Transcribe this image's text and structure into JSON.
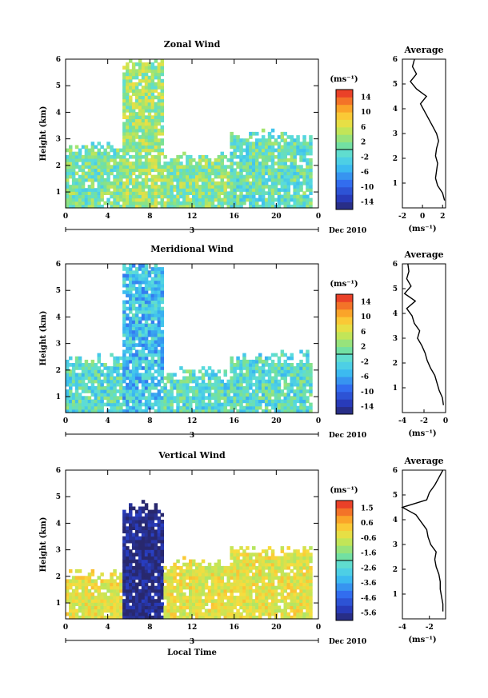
{
  "chart_data": [
    {
      "type": "heatmap",
      "title": "Zonal Wind",
      "ylabel": "Height (km)",
      "xticks": [
        "0",
        "4",
        "8",
        "12",
        "16",
        "20",
        "0"
      ],
      "xlim": [
        0,
        24
      ],
      "yticks": [
        "1",
        "2",
        "3",
        "4",
        "5",
        "6"
      ],
      "ylim": [
        0.4,
        6.0
      ],
      "day_label": "3",
      "month_label": "Dec 2010",
      "colorbar": {
        "unit": "(ms⁻¹)",
        "ticks": [
          "14",
          "10",
          "6",
          "2",
          "-2",
          "-6",
          "-10",
          "-14"
        ],
        "range": [
          -16,
          16
        ]
      },
      "regimes": [
        {
          "t0": 0,
          "t1": 5.3,
          "h_top": 2.7,
          "value": 1
        },
        {
          "t0": 5.3,
          "t1": 9.2,
          "h_top": 6.0,
          "value": 3
        },
        {
          "t0": 9.2,
          "t1": 15.5,
          "h_top": 2.3,
          "value": 2
        },
        {
          "t0": 15.5,
          "t1": 23.5,
          "h_top": 3.1,
          "value": 0
        }
      ],
      "average_profile": {
        "title": "Average",
        "xlabel": "(ms⁻¹)",
        "xticks": [
          "-2",
          "0",
          "2"
        ],
        "xlim": [
          -2,
          2.3
        ],
        "heights": [
          0.3,
          0.6,
          0.9,
          1.2,
          1.5,
          1.8,
          2.1,
          2.4,
          2.7,
          3.0,
          3.3,
          3.6,
          3.9,
          4.2,
          4.5,
          4.8,
          5.1,
          5.4,
          5.7,
          6.0
        ],
        "values": [
          2.2,
          2.0,
          1.5,
          1.3,
          1.4,
          1.5,
          1.3,
          1.4,
          1.6,
          1.4,
          1.0,
          0.6,
          0.2,
          -0.2,
          0.4,
          -0.6,
          -1.2,
          -0.6,
          -1.0,
          -0.8
        ]
      }
    },
    {
      "type": "heatmap",
      "title": "Meridional Wind",
      "ylabel": "Height (km)",
      "xticks": [
        "0",
        "4",
        "8",
        "12",
        "16",
        "20",
        "0"
      ],
      "xlim": [
        0,
        24
      ],
      "yticks": [
        "1",
        "2",
        "3",
        "4",
        "5",
        "6"
      ],
      "ylim": [
        0.4,
        6.0
      ],
      "day_label": "3",
      "month_label": "Dec 2010",
      "colorbar": {
        "unit": "(ms⁻¹)",
        "ticks": [
          "14",
          "10",
          "6",
          "2",
          "-2",
          "-6",
          "-10",
          "-14"
        ],
        "range": [
          -16,
          16
        ]
      },
      "regimes": [
        {
          "t0": 0,
          "t1": 5.3,
          "h_top": 2.4,
          "value": -1
        },
        {
          "t0": 5.3,
          "t1": 9.2,
          "h_top": 6.0,
          "value": -4
        },
        {
          "t0": 9.2,
          "t1": 15.5,
          "h_top": 1.9,
          "value": -1
        },
        {
          "t0": 15.5,
          "t1": 23.5,
          "h_top": 2.5,
          "value": -1
        }
      ],
      "average_profile": {
        "title": "Average",
        "xlabel": "(ms⁻¹)",
        "xticks": [
          "-4",
          "-2",
          "0"
        ],
        "xlim": [
          -4,
          0
        ],
        "heights": [
          0.3,
          0.6,
          0.9,
          1.2,
          1.5,
          1.8,
          2.1,
          2.4,
          2.7,
          3.0,
          3.3,
          3.6,
          3.9,
          4.2,
          4.5,
          4.8,
          5.1,
          5.4,
          5.7,
          6.0
        ],
        "values": [
          -0.2,
          -0.3,
          -0.6,
          -0.8,
          -1.0,
          -1.4,
          -1.7,
          -1.9,
          -2.2,
          -2.6,
          -2.4,
          -2.9,
          -3.1,
          -3.6,
          -2.8,
          -3.8,
          -3.2,
          -3.6,
          -3.4,
          -3.5
        ]
      }
    },
    {
      "type": "heatmap",
      "title": "Vertical Wind",
      "ylabel": "Height (km)",
      "xlabel": "Local Time",
      "xticks": [
        "0",
        "4",
        "8",
        "12",
        "16",
        "20",
        "0"
      ],
      "xlim": [
        0,
        24
      ],
      "yticks": [
        "1",
        "2",
        "3",
        "4",
        "5",
        "6"
      ],
      "ylim": [
        0.4,
        6.0
      ],
      "day_label": "3",
      "month_label": "Dec 2010",
      "colorbar": {
        "unit": "(ms⁻¹)",
        "ticks": [
          "1.5",
          "0.6",
          "-0.6",
          "-1.6",
          "-2.6",
          "-3.6",
          "-4.6",
          "-5.6"
        ],
        "range": [
          -6,
          2
        ]
      },
      "regimes": [
        {
          "t0": 0,
          "t1": 5.3,
          "h_top": 2.1,
          "value": -0.3
        },
        {
          "t0": 5.3,
          "t1": 9.2,
          "h_top": 4.6,
          "value": -5.8
        },
        {
          "t0": 9.2,
          "t1": 15.5,
          "h_top": 2.5,
          "value": -0.3
        },
        {
          "t0": 15.5,
          "t1": 23.5,
          "h_top": 3.0,
          "value": -0.3
        }
      ],
      "average_profile": {
        "title": "Average",
        "xlabel": "(ms⁻¹)",
        "xticks": [
          "-4",
          "-2"
        ],
        "xlim": [
          -4,
          -0.8
        ],
        "heights": [
          0.3,
          0.6,
          0.9,
          1.2,
          1.5,
          1.8,
          2.1,
          2.4,
          2.7,
          3.0,
          3.3,
          3.6,
          3.9,
          4.2,
          4.5,
          4.8,
          5.1,
          5.4,
          5.7,
          6.0
        ],
        "values": [
          -1.0,
          -1.0,
          -1.1,
          -1.2,
          -1.2,
          -1.3,
          -1.5,
          -1.6,
          -1.5,
          -1.9,
          -2.1,
          -2.2,
          -2.6,
          -3.0,
          -4.0,
          -2.2,
          -2.0,
          -1.6,
          -1.3,
          -1.0
        ]
      }
    }
  ]
}
